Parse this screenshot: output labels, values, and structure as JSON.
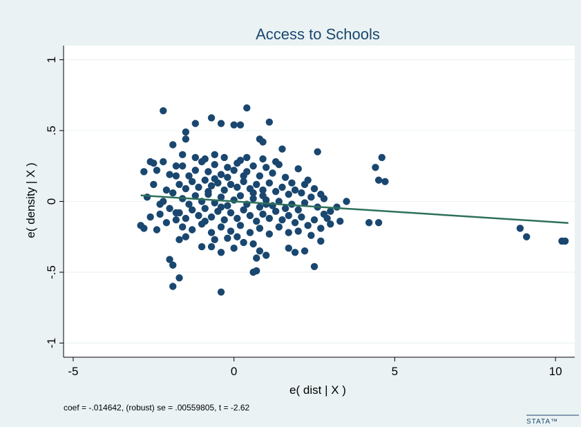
{
  "chart_data": {
    "type": "scatter",
    "title": "Access to Schools",
    "xlabel": "e( dist | X )",
    "ylabel": "e( density | X )",
    "xlim": [
      -5.3,
      10.6
    ],
    "ylim": [
      -1.1,
      1.1
    ],
    "xticks": [
      -5,
      0,
      5,
      10
    ],
    "xtick_labels": [
      "-5",
      "0",
      "5",
      "10"
    ],
    "yticks": [
      -1,
      -0.5,
      0,
      0.5,
      1
    ],
    "ytick_labels": [
      "-1",
      "-.5",
      "0",
      ".5",
      "1"
    ],
    "grid": "horizontal",
    "legend": "none",
    "note": "coef = -.014642, (robust) se = .00559805, t = -2.62",
    "fit_line": {
      "slope": -0.014642,
      "x_range": [
        -2.9,
        10.4
      ],
      "intercept": 0.0
    },
    "colors": {
      "background": "#eaf2f3",
      "plot_area": "#ffffff",
      "points": "#1a476f",
      "fit_line": "#2c7058",
      "title": "#1a476f",
      "grid": "#eaf2f3"
    },
    "points": [
      [
        -2.2,
        0.64
      ],
      [
        -0.7,
        0.59
      ],
      [
        0.4,
        0.66
      ],
      [
        1.1,
        0.56
      ],
      [
        -0.4,
        0.55
      ],
      [
        0.0,
        0.54
      ],
      [
        -1.5,
        0.49
      ],
      [
        -1.2,
        0.55
      ],
      [
        0.2,
        0.54
      ],
      [
        0.8,
        0.44
      ],
      [
        0.9,
        0.42
      ],
      [
        -1.5,
        0.44
      ],
      [
        -1.9,
        0.4
      ],
      [
        -1.6,
        0.33
      ],
      [
        1.5,
        0.37
      ],
      [
        2.6,
        0.35
      ],
      [
        4.6,
        0.31
      ],
      [
        4.4,
        0.24
      ],
      [
        4.5,
        0.15
      ],
      [
        4.7,
        0.14
      ],
      [
        -2.8,
        0.21
      ],
      [
        -2.6,
        0.28
      ],
      [
        -2.4,
        0.22
      ],
      [
        -2.2,
        0.28
      ],
      [
        -2.0,
        0.19
      ],
      [
        -1.8,
        0.25
      ],
      [
        -2.5,
        0.12
      ],
      [
        -2.1,
        0.08
      ],
      [
        -2.7,
        0.03
      ],
      [
        -2.3,
        -0.02
      ],
      [
        -2.0,
        -0.05
      ],
      [
        -2.6,
        -0.11
      ],
      [
        -2.9,
        -0.17
      ],
      [
        -2.8,
        -0.19
      ],
      [
        -2.4,
        -0.2
      ],
      [
        -2.1,
        -0.15
      ],
      [
        -1.8,
        -0.08
      ],
      [
        -2.2,
        0.0
      ],
      [
        -1.6,
        0.25
      ],
      [
        -1.4,
        0.18
      ],
      [
        -1.2,
        0.22
      ],
      [
        -1.0,
        0.28
      ],
      [
        -0.8,
        0.21
      ],
      [
        -0.6,
        0.26
      ],
      [
        -0.4,
        0.19
      ],
      [
        -0.2,
        0.24
      ],
      [
        0.0,
        0.22
      ],
      [
        0.2,
        0.29
      ],
      [
        0.4,
        0.21
      ],
      [
        0.6,
        0.25
      ],
      [
        0.8,
        0.18
      ],
      [
        1.0,
        0.24
      ],
      [
        1.2,
        0.2
      ],
      [
        1.4,
        0.26
      ],
      [
        1.6,
        0.17
      ],
      [
        1.8,
        0.13
      ],
      [
        2.0,
        0.23
      ],
      [
        2.3,
        0.15
      ],
      [
        2.5,
        0.09
      ],
      [
        -1.7,
        0.12
      ],
      [
        -1.5,
        0.09
      ],
      [
        -1.3,
        0.14
      ],
      [
        -1.1,
        0.1
      ],
      [
        -0.9,
        0.15
      ],
      [
        -0.7,
        0.11
      ],
      [
        -0.5,
        0.13
      ],
      [
        -0.3,
        0.08
      ],
      [
        -0.1,
        0.12
      ],
      [
        0.1,
        0.1
      ],
      [
        0.3,
        0.14
      ],
      [
        0.5,
        0.09
      ],
      [
        0.7,
        0.12
      ],
      [
        0.9,
        0.08
      ],
      [
        1.1,
        0.13
      ],
      [
        1.3,
        0.07
      ],
      [
        1.5,
        0.1
      ],
      [
        1.7,
        0.05
      ],
      [
        1.9,
        0.08
      ],
      [
        2.1,
        0.06
      ],
      [
        2.4,
        0.03
      ],
      [
        -1.6,
        0.02
      ],
      [
        -1.4,
        -0.02
      ],
      [
        -1.2,
        0.04
      ],
      [
        -1.0,
        0.0
      ],
      [
        -0.8,
        0.05
      ],
      [
        -0.6,
        -0.01
      ],
      [
        -0.4,
        0.03
      ],
      [
        -0.2,
        -0.03
      ],
      [
        0.0,
        0.01
      ],
      [
        0.2,
        0.04
      ],
      [
        0.4,
        -0.02
      ],
      [
        0.6,
        0.02
      ],
      [
        0.8,
        -0.04
      ],
      [
        1.0,
        0.01
      ],
      [
        1.2,
        -0.03
      ],
      [
        1.4,
        0.0
      ],
      [
        1.6,
        -0.05
      ],
      [
        1.8,
        -0.02
      ],
      [
        2.0,
        -0.06
      ],
      [
        2.2,
        -0.01
      ],
      [
        2.6,
        -0.04
      ],
      [
        2.8,
        -0.09
      ],
      [
        3.2,
        -0.04
      ],
      [
        3.5,
        0.0
      ],
      [
        2.9,
        -0.12
      ],
      [
        3.0,
        -0.07
      ],
      [
        -1.7,
        -0.08
      ],
      [
        -1.5,
        -0.12
      ],
      [
        -1.3,
        -0.06
      ],
      [
        -1.1,
        -0.1
      ],
      [
        -0.9,
        -0.05
      ],
      [
        -0.7,
        -0.11
      ],
      [
        -0.5,
        -0.07
      ],
      [
        -0.3,
        -0.13
      ],
      [
        -0.1,
        -0.08
      ],
      [
        0.1,
        -0.12
      ],
      [
        0.3,
        -0.06
      ],
      [
        0.5,
        -0.1
      ],
      [
        0.7,
        -0.14
      ],
      [
        0.9,
        -0.09
      ],
      [
        1.1,
        -0.12
      ],
      [
        1.3,
        -0.07
      ],
      [
        1.5,
        -0.13
      ],
      [
        1.7,
        -0.1
      ],
      [
        1.9,
        -0.15
      ],
      [
        2.1,
        -0.11
      ],
      [
        2.3,
        -0.17
      ],
      [
        2.5,
        -0.13
      ],
      [
        2.7,
        -0.19
      ],
      [
        -1.6,
        -0.18
      ],
      [
        -1.3,
        -0.2
      ],
      [
        -1.0,
        -0.16
      ],
      [
        -0.7,
        -0.22
      ],
      [
        -0.4,
        -0.18
      ],
      [
        -0.1,
        -0.21
      ],
      [
        0.2,
        -0.17
      ],
      [
        0.5,
        -0.22
      ],
      [
        0.8,
        -0.19
      ],
      [
        1.1,
        -0.23
      ],
      [
        1.4,
        -0.18
      ],
      [
        1.7,
        -0.22
      ],
      [
        2.0,
        -0.21
      ],
      [
        2.4,
        -0.24
      ],
      [
        3.3,
        -0.14
      ],
      [
        -1.5,
        -0.25
      ],
      [
        -1.7,
        -0.27
      ],
      [
        -1.0,
        -0.32
      ],
      [
        -0.7,
        -0.32
      ],
      [
        -0.6,
        -0.27
      ],
      [
        -0.2,
        -0.26
      ],
      [
        0.1,
        -0.25
      ],
      [
        0.3,
        -0.29
      ],
      [
        0.6,
        -0.3
      ],
      [
        -0.4,
        -0.36
      ],
      [
        0.0,
        -0.33
      ],
      [
        0.8,
        -0.35
      ],
      [
        0.7,
        -0.4
      ],
      [
        1.0,
        -0.38
      ],
      [
        1.9,
        -0.36
      ],
      [
        2.2,
        -0.35
      ],
      [
        2.7,
        -0.28
      ],
      [
        1.7,
        -0.33
      ],
      [
        0.6,
        -0.5
      ],
      [
        0.7,
        -0.49
      ],
      [
        2.5,
        -0.46
      ],
      [
        -2.0,
        -0.41
      ],
      [
        -1.9,
        -0.45
      ],
      [
        -1.7,
        -0.54
      ],
      [
        -1.9,
        -0.6
      ],
      [
        -0.4,
        -0.64
      ],
      [
        4.2,
        -0.15
      ],
      [
        4.5,
        -0.15
      ],
      [
        8.9,
        -0.19
      ],
      [
        9.1,
        -0.25
      ],
      [
        10.2,
        -0.28
      ],
      [
        10.3,
        -0.28
      ],
      [
        -0.9,
        0.3
      ],
      [
        -0.3,
        0.31
      ],
      [
        0.4,
        0.31
      ],
      [
        -1.2,
        0.31
      ],
      [
        -0.6,
        0.33
      ],
      [
        0.1,
        0.27
      ],
      [
        0.9,
        0.3
      ],
      [
        1.3,
        0.28
      ],
      [
        -2.5,
        0.27
      ],
      [
        -0.8,
        0.07
      ],
      [
        -0.6,
        0.16
      ],
      [
        -0.2,
        0.17
      ],
      [
        0.3,
        0.18
      ],
      [
        0.6,
        0.06
      ],
      [
        1.0,
        -0.02
      ],
      [
        -0.9,
        -0.14
      ],
      [
        -0.4,
        -0.04
      ],
      [
        0.9,
        0.04
      ],
      [
        -1.8,
        0.18
      ],
      [
        -1.9,
        0.06
      ],
      [
        -1.8,
        -0.13
      ],
      [
        -2.3,
        -0.09
      ],
      [
        2.7,
        0.05
      ],
      [
        2.2,
        0.12
      ],
      [
        2.8,
        0.02
      ],
      [
        3.0,
        -0.16
      ]
    ]
  }
}
